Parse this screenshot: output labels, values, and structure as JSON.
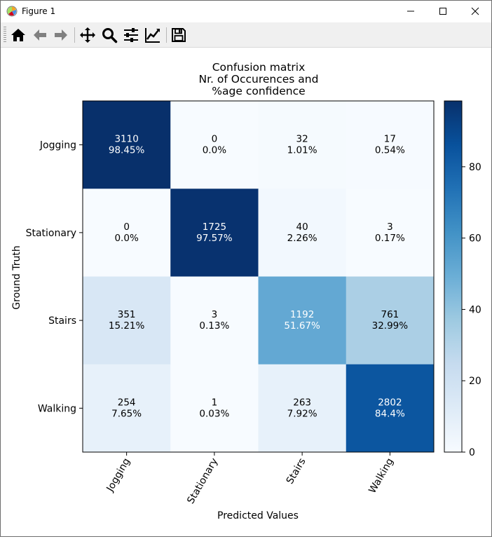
{
  "window": {
    "title": "Figure 1"
  },
  "toolbar": {
    "tools": [
      "home-icon",
      "back-arrow-icon",
      "forward-arrow-icon",
      "pan-move-icon",
      "zoom-magnifier-icon",
      "configure-subplots-icon",
      "edit-axis-icon",
      "save-floppy-icon"
    ]
  },
  "colors": {
    "colormap": "Blues",
    "text_light": "#ffffff",
    "text_dark": "#000000"
  },
  "chart_data": {
    "type": "heatmap",
    "title_lines": [
      "Confusion matrix",
      "Nr. of Occurences and",
      "%age confidence"
    ],
    "xlabel": "Predicted Values",
    "ylabel": "Ground Truth",
    "x_categories": [
      "Jogging",
      "Stationary",
      "Stairs",
      "Walking"
    ],
    "y_categories": [
      "Jogging",
      "Stationary",
      "Stairs",
      "Walking"
    ],
    "counts": [
      [
        3110,
        0,
        32,
        17
      ],
      [
        0,
        1725,
        40,
        3
      ],
      [
        351,
        3,
        1192,
        761
      ],
      [
        254,
        1,
        263,
        2802
      ]
    ],
    "percent_labels": [
      [
        "98.45%",
        "0.0%",
        "1.01%",
        "0.54%"
      ],
      [
        "0.0%",
        "97.57%",
        "2.26%",
        "0.17%"
      ],
      [
        "15.21%",
        "0.13%",
        "51.67%",
        "32.99%"
      ],
      [
        "7.65%",
        "0.03%",
        "7.92%",
        "84.4%"
      ]
    ],
    "percent_values": [
      [
        98.45,
        0.0,
        1.01,
        0.54
      ],
      [
        0.0,
        97.57,
        2.26,
        0.17
      ],
      [
        15.21,
        0.13,
        51.67,
        32.99
      ],
      [
        7.65,
        0.03,
        7.92,
        84.4
      ]
    ],
    "colorbar": {
      "range": [
        0,
        98.45
      ],
      "ticks": [
        0,
        20,
        40,
        60,
        80
      ]
    },
    "x_tick_rotation": 60
  }
}
